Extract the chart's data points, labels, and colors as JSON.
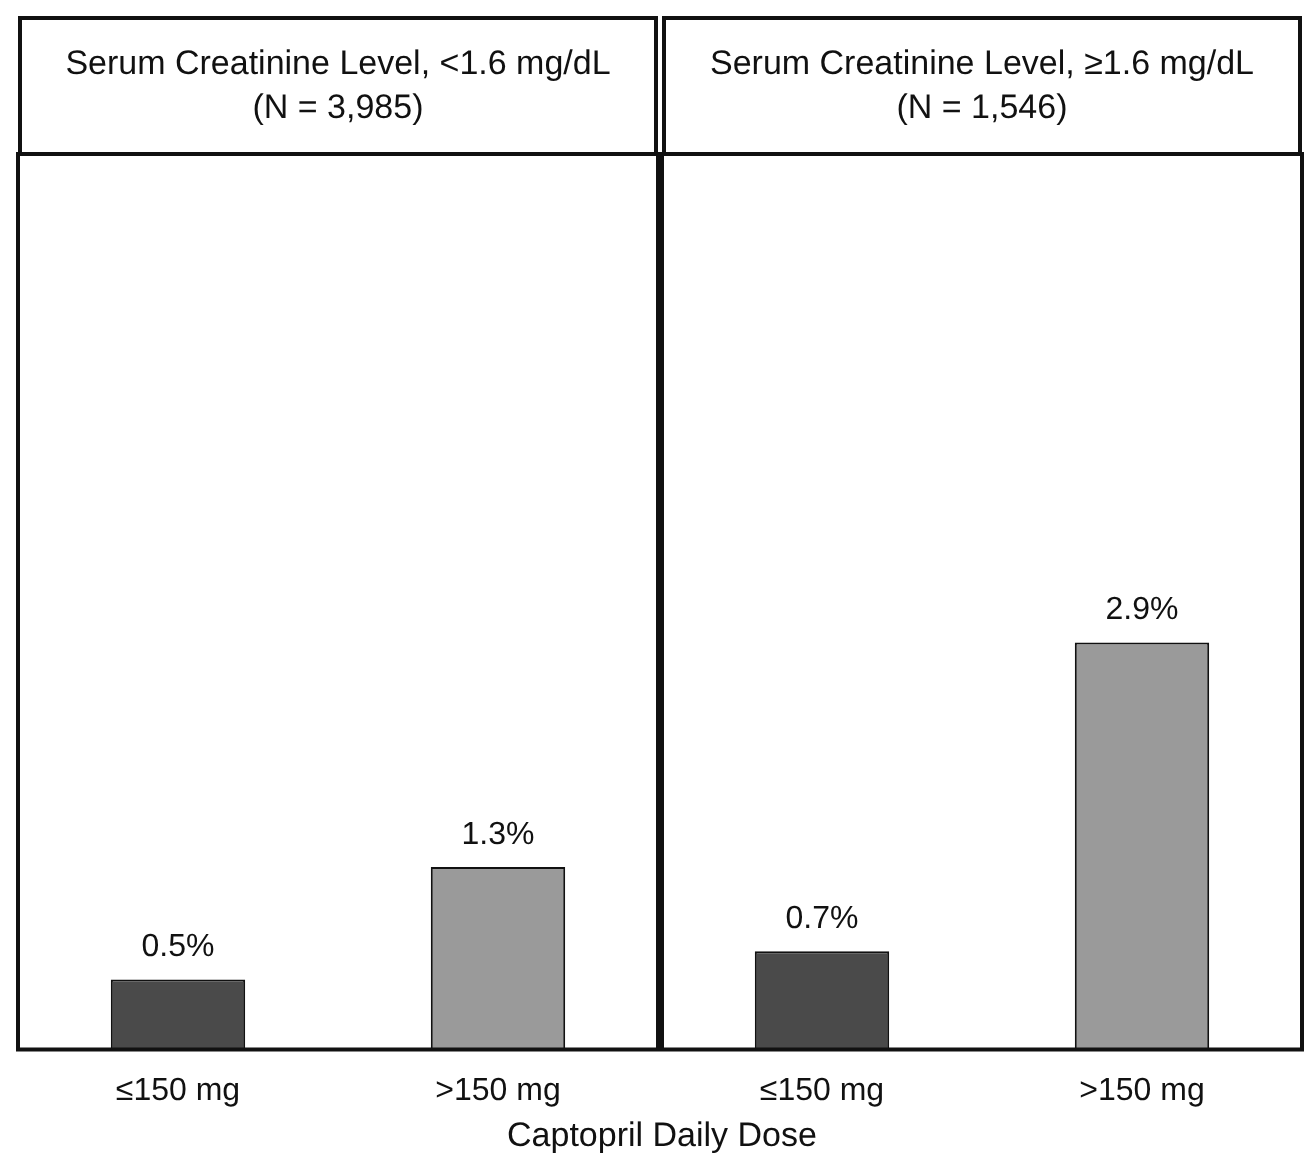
{
  "chart_data": [
    {
      "type": "bar",
      "title": "Serum Creatinine Level, <1.6 mg/dL (N = 3,985)",
      "categories": [
        "≤150 mg",
        ">150 mg"
      ],
      "values": [
        0.5,
        1.3
      ],
      "value_labels": [
        "0.5%",
        "1.3%"
      ],
      "colors": [
        "#4a4a4a",
        "#9a9a9a"
      ],
      "tick_labels": "x",
      "xlabel": "Captopril Daily Dose"
    },
    {
      "type": "bar",
      "title": "Serum Creatinine Level, ≥1.6 mg/dL (N = 1,546)",
      "categories": [
        "≤150 mg",
        ">150 mg"
      ],
      "values": [
        0.7,
        2.9
      ],
      "value_labels": [
        "0.7%",
        "2.9%"
      ],
      "colors": [
        "#4a4a4a",
        "#9a9a9a"
      ],
      "tick_labels": "x"
    }
  ]
}
